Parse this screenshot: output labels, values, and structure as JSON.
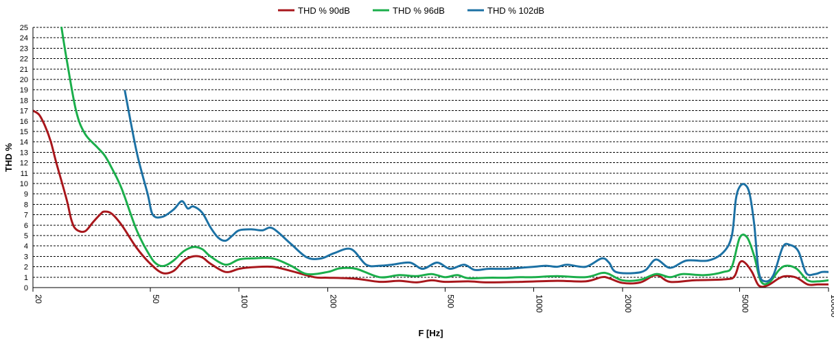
{
  "chart_data": {
    "type": "line",
    "title": "",
    "xlabel": "F [Hz]",
    "ylabel": "THD %",
    "xscale": "log",
    "xlim": [
      20,
      10000
    ],
    "ylim": [
      0,
      25
    ],
    "grid": "horizontal dashed",
    "legend_position": "top",
    "x_ticks": [
      "20",
      "50",
      "100",
      "200",
      "500",
      "1000",
      "2000",
      "5000",
      "10000"
    ],
    "y_ticks": [
      "0",
      "1",
      "2",
      "3",
      "4",
      "5",
      "6",
      "7",
      "8",
      "9",
      "10",
      "11",
      "12",
      "13",
      "14",
      "15",
      "16",
      "17",
      "18",
      "19",
      "20",
      "21",
      "22",
      "23",
      "24",
      "25"
    ],
    "series": [
      {
        "name": "THD % 90dB",
        "color": "#A8171C",
        "points": [
          [
            20,
            17
          ],
          [
            21,
            16.6
          ],
          [
            22,
            15.5
          ],
          [
            23,
            14
          ],
          [
            24,
            12
          ],
          [
            26,
            8.5
          ],
          [
            27,
            6.5
          ],
          [
            28,
            5.6
          ],
          [
            30,
            5.4
          ],
          [
            32,
            6.3
          ],
          [
            34,
            7.1
          ],
          [
            35,
            7.3
          ],
          [
            37,
            7.1
          ],
          [
            40,
            6
          ],
          [
            45,
            3.8
          ],
          [
            50,
            2.3
          ],
          [
            55,
            1.4
          ],
          [
            60,
            1.6
          ],
          [
            65,
            2.6
          ],
          [
            70,
            3
          ],
          [
            75,
            2.9
          ],
          [
            80,
            2.3
          ],
          [
            90,
            1.5
          ],
          [
            100,
            1.8
          ],
          [
            110,
            1.95
          ],
          [
            130,
            2
          ],
          [
            150,
            1.6
          ],
          [
            180,
            1
          ],
          [
            200,
            0.95
          ],
          [
            250,
            0.85
          ],
          [
            300,
            0.55
          ],
          [
            350,
            0.65
          ],
          [
            400,
            0.5
          ],
          [
            450,
            0.7
          ],
          [
            500,
            0.55
          ],
          [
            600,
            0.6
          ],
          [
            700,
            0.5
          ],
          [
            900,
            0.55
          ],
          [
            1200,
            0.65
          ],
          [
            1500,
            0.6
          ],
          [
            1700,
            1
          ],
          [
            1800,
            0.9
          ],
          [
            2000,
            0.45
          ],
          [
            2300,
            0.5
          ],
          [
            2600,
            1.2
          ],
          [
            2900,
            0.55
          ],
          [
            3500,
            0.7
          ],
          [
            4500,
            0.8
          ],
          [
            4800,
            1.1
          ],
          [
            5000,
            2.4
          ],
          [
            5200,
            2.4
          ],
          [
            5500,
            1.5
          ],
          [
            5800,
            0.2
          ],
          [
            6200,
            0.2
          ],
          [
            6800,
            0.9
          ],
          [
            7200,
            1.1
          ],
          [
            7800,
            0.95
          ],
          [
            8500,
            0.3
          ],
          [
            9200,
            0.3
          ],
          [
            10000,
            0.3
          ]
        ]
      },
      {
        "name": "THD % 96dB",
        "color": "#1BAE4B",
        "points": [
          [
            25,
            25
          ],
          [
            26,
            22
          ],
          [
            28,
            17
          ],
          [
            30,
            14.8
          ],
          [
            33,
            13.5
          ],
          [
            35,
            12.7
          ],
          [
            37,
            11.5
          ],
          [
            40,
            9.5
          ],
          [
            45,
            5.5
          ],
          [
            50,
            3
          ],
          [
            53,
            2.2
          ],
          [
            56,
            2.1
          ],
          [
            60,
            2.6
          ],
          [
            65,
            3.5
          ],
          [
            70,
            3.9
          ],
          [
            75,
            3.7
          ],
          [
            80,
            3
          ],
          [
            90,
            2.2
          ],
          [
            100,
            2.7
          ],
          [
            110,
            2.8
          ],
          [
            130,
            2.8
          ],
          [
            150,
            2.1
          ],
          [
            170,
            1.3
          ],
          [
            200,
            1.5
          ],
          [
            220,
            1.85
          ],
          [
            250,
            1.8
          ],
          [
            300,
            1
          ],
          [
            350,
            1.2
          ],
          [
            400,
            1.1
          ],
          [
            450,
            1.3
          ],
          [
            500,
            1
          ],
          [
            550,
            1.2
          ],
          [
            600,
            0.9
          ],
          [
            700,
            0.95
          ],
          [
            800,
            0.95
          ],
          [
            900,
            1
          ],
          [
            1000,
            1
          ],
          [
            1200,
            1.1
          ],
          [
            1500,
            1
          ],
          [
            1700,
            1.4
          ],
          [
            1800,
            1.3
          ],
          [
            2000,
            0.7
          ],
          [
            2300,
            0.75
          ],
          [
            2600,
            1.3
          ],
          [
            2900,
            1
          ],
          [
            3200,
            1.3
          ],
          [
            3800,
            1.2
          ],
          [
            4400,
            1.5
          ],
          [
            4700,
            2
          ],
          [
            5000,
            4.8
          ],
          [
            5300,
            4.8
          ],
          [
            5600,
            3
          ],
          [
            5900,
            0.6
          ],
          [
            6300,
            0.5
          ],
          [
            6800,
            1.7
          ],
          [
            7200,
            2.1
          ],
          [
            7800,
            1.8
          ],
          [
            8500,
            0.7
          ],
          [
            9200,
            0.6
          ],
          [
            10000,
            0.7
          ]
        ]
      },
      {
        "name": "THD % 102dB",
        "color": "#1C71A4",
        "points": [
          [
            41,
            18.9
          ],
          [
            45,
            13
          ],
          [
            49,
            9
          ],
          [
            51,
            7
          ],
          [
            55,
            6.8
          ],
          [
            60,
            7.5
          ],
          [
            64,
            8.3
          ],
          [
            67,
            7.6
          ],
          [
            70,
            7.8
          ],
          [
            75,
            7.2
          ],
          [
            80,
            5.8
          ],
          [
            85,
            4.8
          ],
          [
            90,
            4.5
          ],
          [
            95,
            5
          ],
          [
            100,
            5.5
          ],
          [
            110,
            5.6
          ],
          [
            120,
            5.5
          ],
          [
            130,
            5.7
          ],
          [
            150,
            4.2
          ],
          [
            170,
            2.9
          ],
          [
            190,
            2.8
          ],
          [
            210,
            3.3
          ],
          [
            240,
            3.7
          ],
          [
            270,
            2.2
          ],
          [
            300,
            2.1
          ],
          [
            330,
            2.2
          ],
          [
            380,
            2.4
          ],
          [
            420,
            1.8
          ],
          [
            470,
            2.4
          ],
          [
            520,
            1.8
          ],
          [
            580,
            2.2
          ],
          [
            630,
            1.7
          ],
          [
            700,
            1.8
          ],
          [
            800,
            1.8
          ],
          [
            900,
            1.9
          ],
          [
            1000,
            2
          ],
          [
            1100,
            2.1
          ],
          [
            1200,
            2
          ],
          [
            1300,
            2.2
          ],
          [
            1500,
            2
          ],
          [
            1700,
            2.8
          ],
          [
            1800,
            2.4
          ],
          [
            1900,
            1.5
          ],
          [
            2200,
            1.4
          ],
          [
            2400,
            1.7
          ],
          [
            2600,
            2.7
          ],
          [
            2900,
            1.9
          ],
          [
            3300,
            2.6
          ],
          [
            3900,
            2.6
          ],
          [
            4400,
            3.4
          ],
          [
            4700,
            5
          ],
          [
            4850,
            8.5
          ],
          [
            5000,
            9.7
          ],
          [
            5200,
            9.9
          ],
          [
            5400,
            9
          ],
          [
            5600,
            6
          ],
          [
            5800,
            1.5
          ],
          [
            6100,
            0.6
          ],
          [
            6500,
            1.2
          ],
          [
            7000,
            3.9
          ],
          [
            7400,
            4.1
          ],
          [
            7900,
            3.5
          ],
          [
            8400,
            1.4
          ],
          [
            9000,
            1.3
          ],
          [
            9500,
            1.5
          ],
          [
            10000,
            1.5
          ]
        ]
      }
    ]
  }
}
